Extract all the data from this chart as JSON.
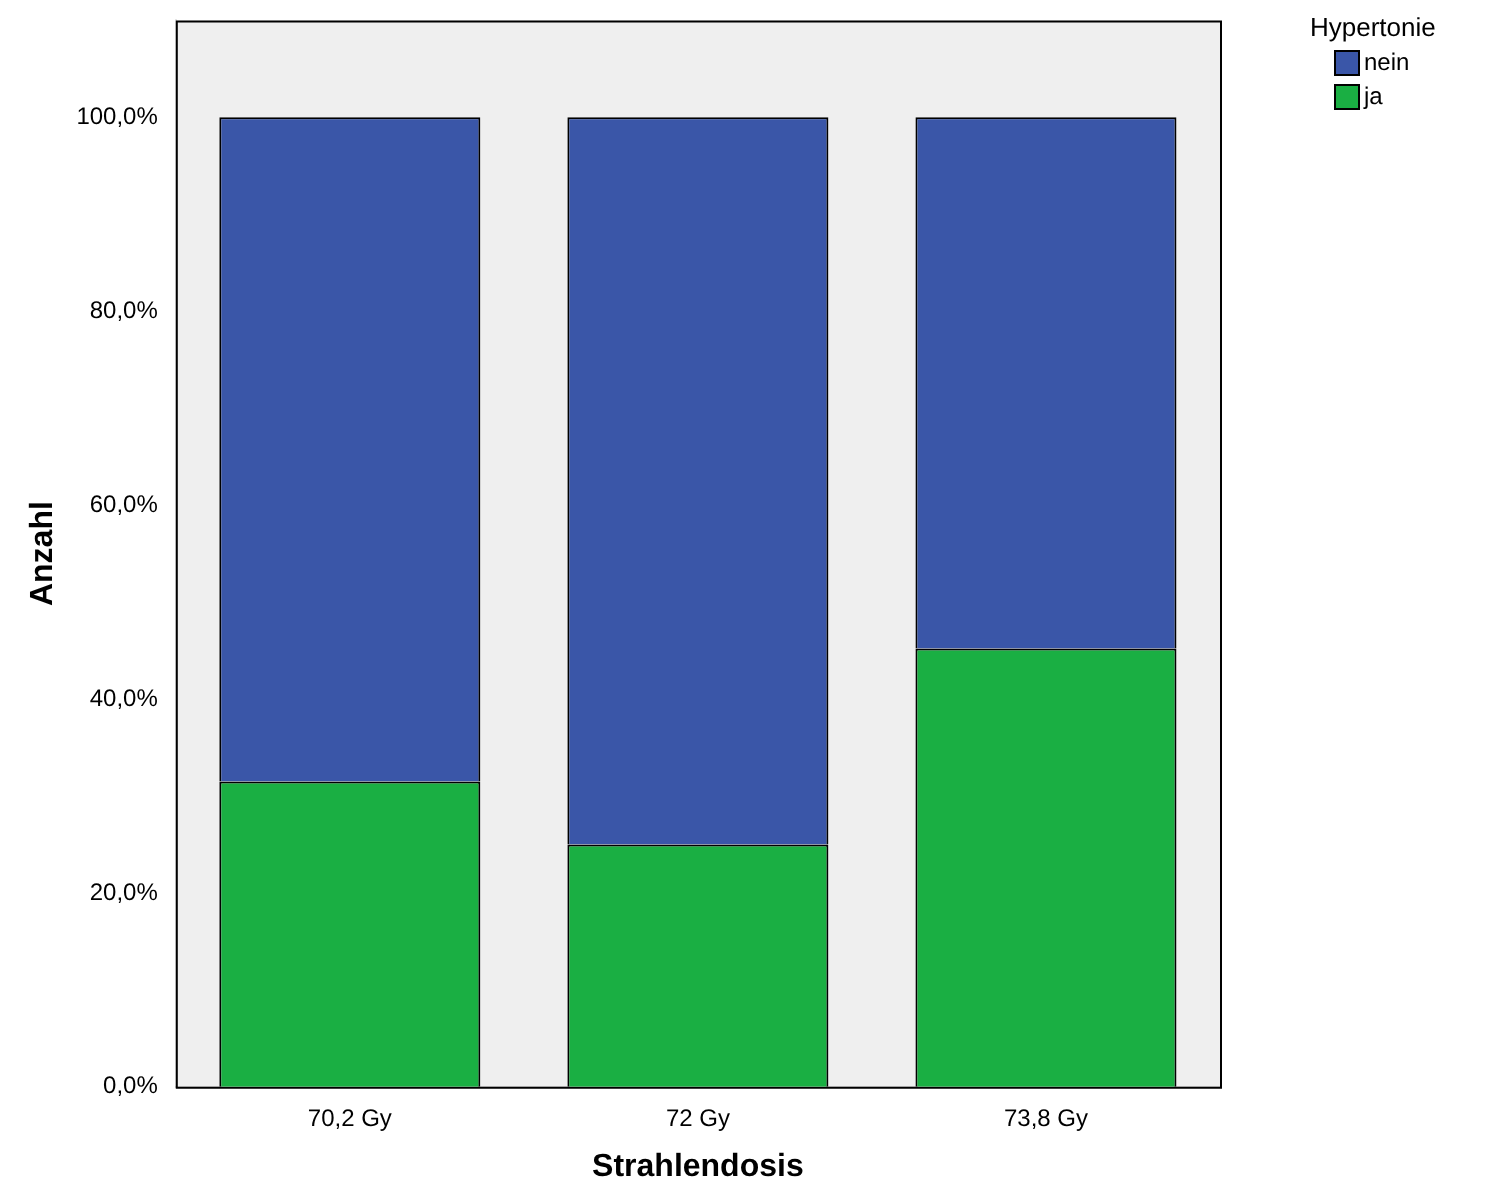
{
  "chart_data": {
    "type": "bar",
    "xlabel": "Strahlendosis",
    "ylabel": "Anzahl",
    "legend_title": "Hypertonie",
    "categories": [
      "70,2 Gy",
      "72 Gy",
      "73,8 Gy"
    ],
    "stacked": true,
    "series": [
      {
        "name": "ja",
        "color": "#1aaf43",
        "values": [
          31.5,
          25,
          45.2
        ]
      },
      {
        "name": "nein",
        "color": "#3a56a8",
        "values": [
          68.5,
          75,
          54.8
        ]
      }
    ],
    "ylim": [
      0,
      110
    ],
    "yticks": [
      {
        "value": 0,
        "label": "0,0%"
      },
      {
        "value": 20,
        "label": "20,0%"
      },
      {
        "value": 40,
        "label": "40,0%"
      },
      {
        "value": 60,
        "label": "60,0%"
      },
      {
        "value": 80,
        "label": "80,0%"
      },
      {
        "value": 100,
        "label": "100,0%"
      }
    ],
    "grid": false,
    "legend": "top right"
  }
}
